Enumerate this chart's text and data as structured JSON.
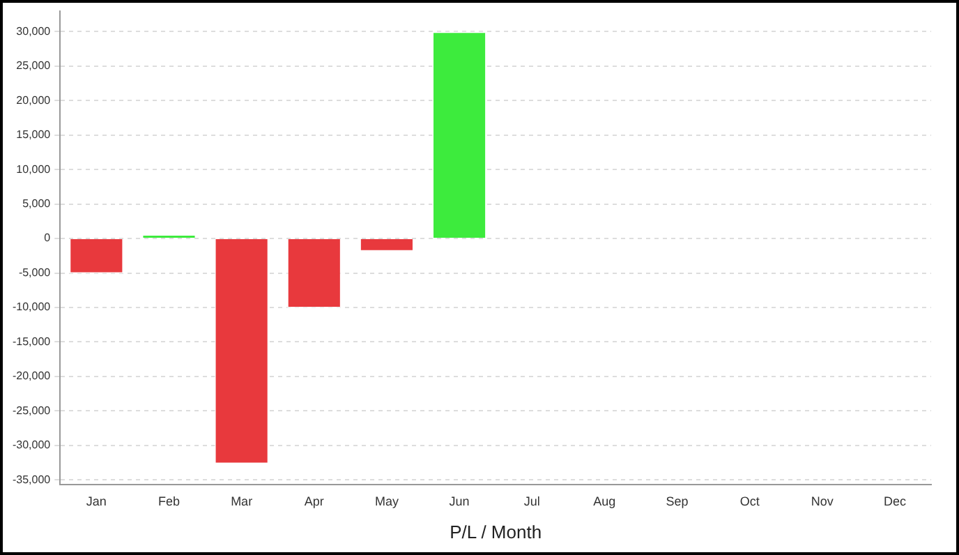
{
  "chart_data": {
    "type": "bar",
    "xlabel": "P/L / Month",
    "categories": [
      "Jan",
      "Feb",
      "Mar",
      "Apr",
      "May",
      "Jun",
      "Jul",
      "Aug",
      "Sep",
      "Oct",
      "Nov",
      "Dec"
    ],
    "values": [
      -5100,
      600,
      -32700,
      -10100,
      -1900,
      30000,
      null,
      null,
      null,
      null,
      null,
      null
    ],
    "colors": [
      "#e8393d",
      "#3deb3d",
      "#e8393d",
      "#e8393d",
      "#e8393d",
      "#3deb3d",
      "#e8393d",
      "#e8393d",
      "#e8393d",
      "#e8393d",
      "#e8393d",
      "#e8393d"
    ],
    "ylim": [
      -35700,
      33000
    ],
    "yticks": [
      {
        "value": -35000,
        "label": "-35,000"
      },
      {
        "value": -30000,
        "label": "-30,000"
      },
      {
        "value": -25000,
        "label": "-25,000"
      },
      {
        "value": -20000,
        "label": "-20,000"
      },
      {
        "value": -15000,
        "label": "-15,000"
      },
      {
        "value": -10000,
        "label": "-10,000"
      },
      {
        "value": -5000,
        "label": "-5,000"
      },
      0,
      {
        "value": 5000,
        "label": "5,000"
      },
      {
        "value": 10000,
        "label": "10,000"
      },
      {
        "value": 15000,
        "label": "15,000"
      },
      {
        "value": 20000,
        "label": "20,000"
      },
      {
        "value": 25000,
        "label": "25,000"
      },
      {
        "value": 30000,
        "label": "30,000"
      }
    ],
    "grid": "y",
    "legend": false
  }
}
